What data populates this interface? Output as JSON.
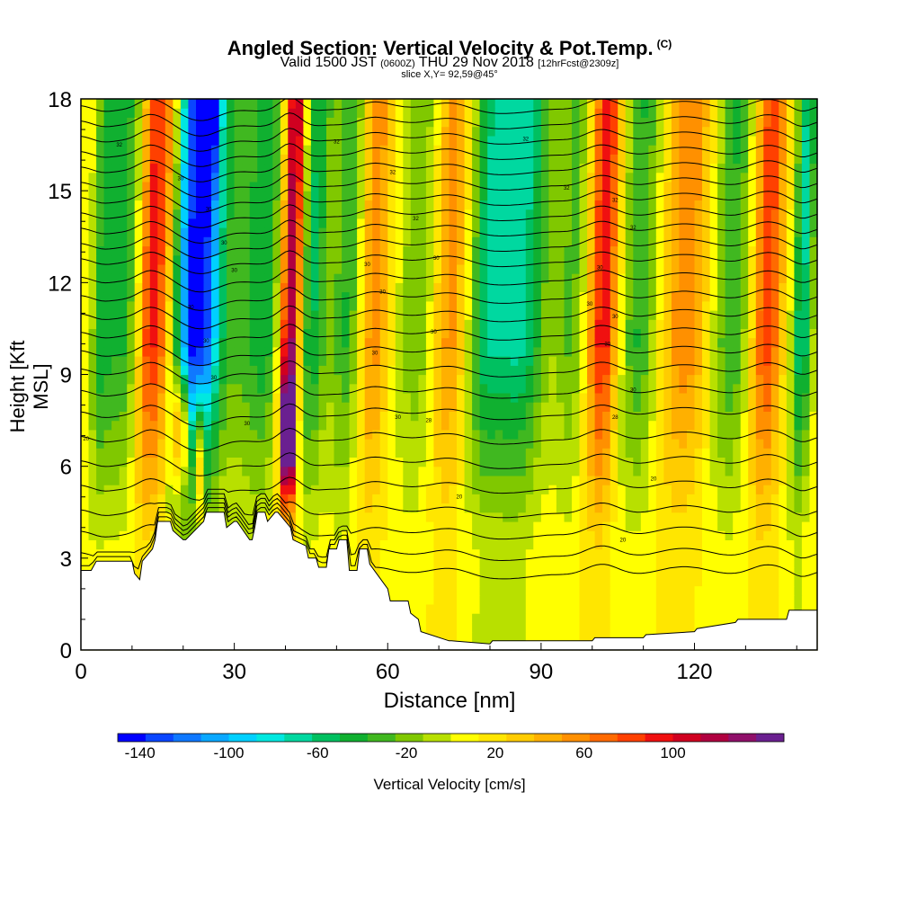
{
  "title": "Angled Section: Vertical Velocity & Pot.Temp.",
  "title_mark": "(C)",
  "subtitle_main": "Valid 1500 JST",
  "subtitle_utc": "(0600Z)",
  "subtitle_date": "THU 29 Nov 2018",
  "subtitle_fcst": "[12hrFcst@2309z]",
  "slice_text": "slice X,Y= 92,59@45°",
  "colorbar_label": "Vertical Velocity [cm/s]",
  "chart_data": {
    "type": "heatmap",
    "title": "Angled Section: Vertical Velocity & Pot.Temp.",
    "xlabel": "Distance [nm]",
    "ylabel": "Height [Kft MSL]",
    "xlim": [
      0,
      144
    ],
    "ylim": [
      0,
      18
    ],
    "x_ticks": [
      0,
      30,
      60,
      90,
      120
    ],
    "y_ticks": [
      0,
      3,
      6,
      9,
      12,
      15,
      18
    ],
    "grid": false,
    "colorbar": {
      "label": "Vertical Velocity [cm/s]",
      "tick_labels": [
        "-140",
        "-100",
        "-60",
        "-20",
        "20",
        "60",
        "100"
      ],
      "tick_values": [
        -140,
        -100,
        -60,
        -20,
        20,
        60,
        100
      ],
      "colors": [
        "#0000ff",
        "#0a46ff",
        "#0f78ff",
        "#0aa8ff",
        "#00d0ff",
        "#00e8e0",
        "#00d8a0",
        "#00c060",
        "#10b030",
        "#40b820",
        "#80c800",
        "#b8e000",
        "#ffff00",
        "#ffe600",
        "#ffcc00",
        "#ffb000",
        "#ff9000",
        "#ff6a00",
        "#ff4000",
        "#f01010",
        "#d00020",
        "#b00040",
        "#90106a",
        "#6a2090"
      ]
    },
    "velocity_bands": [
      {
        "center_nm": 4,
        "width_nm": 2,
        "w": -40
      },
      {
        "center_nm": 8,
        "width_nm": 3,
        "w": -40
      },
      {
        "center_nm": 13,
        "width_nm": 2,
        "w": 40
      },
      {
        "center_nm": 16,
        "width_nm": 3,
        "w": 60
      },
      {
        "center_nm": 21,
        "width_nm": 4,
        "w": -110
      },
      {
        "center_nm": 25,
        "width_nm": 3,
        "w": -60
      },
      {
        "center_nm": 31,
        "width_nm": 4,
        "w": -30
      },
      {
        "center_nm": 36,
        "width_nm": 3,
        "w": -40
      },
      {
        "center_nm": 41,
        "width_nm": 2,
        "w": 100
      },
      {
        "center_nm": 45,
        "width_nm": 3,
        "w": -50
      },
      {
        "center_nm": 52,
        "width_nm": 3,
        "w": -40
      },
      {
        "center_nm": 57,
        "width_nm": 3,
        "w": 40
      },
      {
        "center_nm": 66,
        "width_nm": 4,
        "w": -30
      },
      {
        "center_nm": 72,
        "width_nm": 4,
        "w": 40
      },
      {
        "center_nm": 79,
        "width_nm": 4,
        "w": -50
      },
      {
        "center_nm": 86,
        "width_nm": 5,
        "w": -60
      },
      {
        "center_nm": 96,
        "width_nm": 3,
        "w": -30
      },
      {
        "center_nm": 102,
        "width_nm": 3,
        "w": 70
      },
      {
        "center_nm": 109,
        "width_nm": 4,
        "w": -40
      },
      {
        "center_nm": 118,
        "width_nm": 5,
        "w": 40
      },
      {
        "center_nm": 127,
        "width_nm": 4,
        "w": -40
      },
      {
        "center_nm": 134,
        "width_nm": 3,
        "w": 60
      },
      {
        "center_nm": 141,
        "width_nm": 2,
        "w": -60
      }
    ],
    "updraft_cores": [
      {
        "x_nm": 19.5,
        "h_kft": 7.2,
        "w": 100
      },
      {
        "x_nm": 40.5,
        "h_kft": 7.0,
        "w": 120
      },
      {
        "x_nm": 23,
        "h_kft": 6.2,
        "w": 70
      },
      {
        "x_nm": 25,
        "h_kft": 17.0,
        "w": -60
      }
    ],
    "terrain": {
      "x_nm": [
        0,
        2,
        3,
        10,
        10.5,
        11.5,
        12,
        14,
        14.5,
        15,
        17.5,
        18,
        20,
        20.5,
        24,
        24.5,
        28,
        28.5,
        30,
        30.5,
        33,
        33.5,
        34,
        34.5,
        36,
        36.5,
        38,
        38.5,
        41,
        41.5,
        44,
        44.5,
        46,
        46.5,
        48,
        48.5,
        50,
        50.5,
        52,
        52.5,
        54,
        54.5,
        56,
        56.5,
        60,
        60.5,
        64,
        64.5,
        66,
        66.5,
        72,
        72.5,
        80,
        80.5,
        90,
        90.5,
        95,
        95.5,
        100,
        100.5,
        110,
        110.5,
        120,
        120.5,
        128,
        128.5,
        138,
        138.5,
        144
      ],
      "h_kft": [
        2.6,
        2.6,
        2.9,
        2.9,
        2.5,
        2.3,
        2.9,
        3.3,
        3.6,
        4.2,
        4.2,
        3.9,
        3.6,
        3.6,
        4.2,
        4.5,
        4.5,
        4.0,
        4.2,
        4.2,
        3.6,
        3.6,
        4.0,
        4.5,
        4.5,
        4.2,
        4.5,
        4.5,
        4.0,
        3.6,
        3.4,
        3.0,
        3.0,
        2.7,
        2.7,
        3.3,
        3.3,
        3.6,
        3.6,
        2.6,
        2.6,
        3.3,
        3.3,
        2.8,
        2.0,
        1.6,
        1.6,
        1.2,
        1.0,
        0.6,
        0.3,
        0.3,
        0.2,
        0.3,
        0.3,
        0.3,
        0.3,
        0.3,
        0.3,
        0.4,
        0.4,
        0.5,
        0.6,
        0.7,
        0.9,
        1.0,
        1.0,
        1.3,
        1.3
      ]
    },
    "theta_contour_base_kft": [
      2.6,
      3.2,
      3.9,
      4.6,
      5.4,
      6.2,
      7.0,
      7.8,
      8.5,
      9.2,
      9.8,
      10.4,
      11.0,
      11.6,
      12.2,
      12.8,
      13.3,
      13.8,
      14.3,
      14.8,
      15.3,
      15.8,
      16.3,
      16.8,
      17.3,
      17.8
    ],
    "theta_contour_labels": [
      {
        "x_nm": 7.5,
        "h_kft": 16.5,
        "text": "32"
      },
      {
        "x_nm": 19.5,
        "h_kft": 15.4,
        "text": "30"
      },
      {
        "x_nm": 25,
        "h_kft": 14.4,
        "text": "30"
      },
      {
        "x_nm": 28,
        "h_kft": 13.3,
        "text": "30"
      },
      {
        "x_nm": 30,
        "h_kft": 12.4,
        "text": "30"
      },
      {
        "x_nm": 21.5,
        "h_kft": 11.2,
        "text": "30"
      },
      {
        "x_nm": 24.5,
        "h_kft": 10.1,
        "text": "30"
      },
      {
        "x_nm": 26,
        "h_kft": 8.9,
        "text": "30"
      },
      {
        "x_nm": 32.5,
        "h_kft": 7.4,
        "text": "30"
      },
      {
        "x_nm": 1,
        "h_kft": 6.9,
        "text": "20"
      },
      {
        "x_nm": 50,
        "h_kft": 16.6,
        "text": "32"
      },
      {
        "x_nm": 61,
        "h_kft": 15.6,
        "text": "32"
      },
      {
        "x_nm": 65.5,
        "h_kft": 14.1,
        "text": "32"
      },
      {
        "x_nm": 56,
        "h_kft": 12.6,
        "text": "30"
      },
      {
        "x_nm": 59,
        "h_kft": 11.7,
        "text": "30"
      },
      {
        "x_nm": 69.5,
        "h_kft": 12.8,
        "text": "30"
      },
      {
        "x_nm": 57.5,
        "h_kft": 9.7,
        "text": "30"
      },
      {
        "x_nm": 69,
        "h_kft": 10.4,
        "text": "30"
      },
      {
        "x_nm": 62,
        "h_kft": 7.6,
        "text": "30"
      },
      {
        "x_nm": 68,
        "h_kft": 7.5,
        "text": "28"
      },
      {
        "x_nm": 74,
        "h_kft": 5.0,
        "text": "20"
      },
      {
        "x_nm": 87,
        "h_kft": 16.7,
        "text": "32"
      },
      {
        "x_nm": 95,
        "h_kft": 15.1,
        "text": "32"
      },
      {
        "x_nm": 104.5,
        "h_kft": 14.7,
        "text": "32"
      },
      {
        "x_nm": 108,
        "h_kft": 13.8,
        "text": "32"
      },
      {
        "x_nm": 101.5,
        "h_kft": 12.5,
        "text": "30"
      },
      {
        "x_nm": 99.5,
        "h_kft": 11.3,
        "text": "30"
      },
      {
        "x_nm": 104.5,
        "h_kft": 10.9,
        "text": "30"
      },
      {
        "x_nm": 103,
        "h_kft": 10.0,
        "text": "30"
      },
      {
        "x_nm": 108,
        "h_kft": 8.5,
        "text": "30"
      },
      {
        "x_nm": 104.5,
        "h_kft": 7.6,
        "text": "28"
      },
      {
        "x_nm": 112,
        "h_kft": 5.6,
        "text": "20"
      },
      {
        "x_nm": 106,
        "h_kft": 3.6,
        "text": "20"
      }
    ]
  }
}
